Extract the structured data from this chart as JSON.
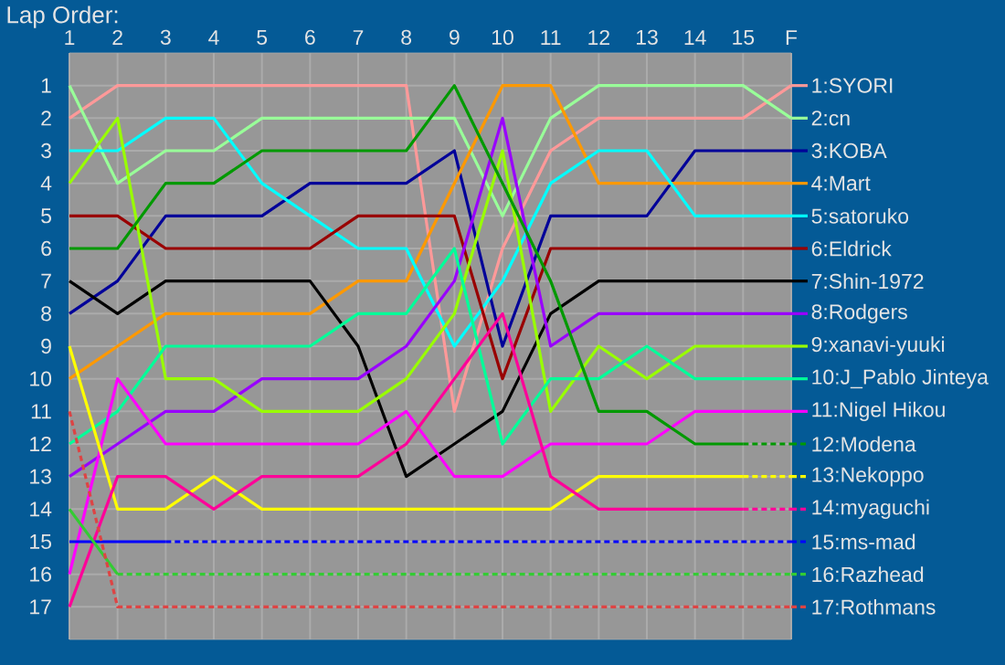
{
  "chart_data": {
    "type": "line",
    "title": "Lap Order:",
    "categories": [
      "1",
      "2",
      "3",
      "4",
      "5",
      "6",
      "7",
      "8",
      "9",
      "10",
      "11",
      "12",
      "13",
      "14",
      "15",
      "F"
    ],
    "ylim": [
      18,
      0
    ],
    "yticks": [
      1,
      2,
      3,
      4,
      5,
      6,
      7,
      8,
      9,
      10,
      11,
      12,
      13,
      14,
      15,
      16,
      17
    ],
    "grid": true,
    "legend": "right",
    "line_style": "solid",
    "series": [
      {
        "name": "1:SYORI",
        "color": "#ff9999",
        "values": [
          2,
          1,
          1,
          1,
          1,
          1,
          1,
          1,
          11,
          6,
          3,
          2,
          2,
          2,
          2,
          1
        ]
      },
      {
        "name": "2:cn",
        "color": "#99ff99",
        "values": [
          1,
          4,
          3,
          3,
          2,
          2,
          2,
          2,
          2,
          5,
          2,
          1,
          1,
          1,
          1,
          2
        ]
      },
      {
        "name": "3:KOBA",
        "color": "#000099",
        "values": [
          8,
          7,
          5,
          5,
          5,
          4,
          4,
          4,
          3,
          9,
          5,
          5,
          5,
          3,
          3,
          3
        ]
      },
      {
        "name": "4:Mart",
        "color": "#ff9900",
        "values": [
          10,
          9,
          8,
          8,
          8,
          8,
          7,
          7,
          4,
          1,
          1,
          4,
          4,
          4,
          4,
          4
        ]
      },
      {
        "name": "5:satoruko",
        "color": "#00ffff",
        "values": [
          3,
          3,
          2,
          2,
          4,
          5,
          6,
          6,
          9,
          7,
          4,
          3,
          3,
          5,
          5,
          5
        ]
      },
      {
        "name": "6:Eldrick",
        "color": "#990000",
        "values": [
          5,
          5,
          6,
          6,
          6,
          6,
          5,
          5,
          5,
          10,
          6,
          6,
          6,
          6,
          6,
          6
        ]
      },
      {
        "name": "7:Shin-1972",
        "color": "#000000",
        "values": [
          7,
          8,
          7,
          7,
          7,
          7,
          9,
          13,
          12,
          11,
          8,
          7,
          7,
          7,
          7,
          7
        ]
      },
      {
        "name": "8:Rodgers",
        "color": "#9900ff",
        "values": [
          13,
          12,
          11,
          11,
          10,
          10,
          10,
          9,
          7,
          2,
          9,
          8,
          8,
          8,
          8,
          8
        ]
      },
      {
        "name": "9:xanavi-yuuki",
        "color": "#99ff00",
        "values": [
          4,
          2,
          10,
          10,
          11,
          11,
          11,
          10,
          8,
          3,
          11,
          9,
          10,
          9,
          9,
          9
        ]
      },
      {
        "name": "10:J_Pablo Jinteya",
        "color": "#00ff99",
        "values": [
          12,
          11,
          9,
          9,
          9,
          9,
          8,
          8,
          6,
          12,
          10,
          10,
          9,
          10,
          10,
          10
        ]
      },
      {
        "name": "11:Nigel Hikou",
        "color": "#ff00ff",
        "values": [
          16,
          10,
          12,
          12,
          12,
          12,
          12,
          11,
          13,
          13,
          12,
          12,
          12,
          11,
          11,
          11
        ]
      },
      {
        "name": "12:Modena",
        "color": "#009900",
        "values": [
          6,
          6,
          4,
          4,
          3,
          3,
          3,
          3,
          1,
          4,
          7,
          11,
          11,
          12,
          12,
          null
        ]
      },
      {
        "color": "#009900",
        "line_style": "dashed",
        "values": [
          null,
          null,
          null,
          null,
          null,
          null,
          null,
          null,
          null,
          null,
          null,
          null,
          null,
          null,
          12,
          12
        ]
      },
      {
        "name": "13:Nekoppo",
        "color": "#ffff00",
        "values": [
          9,
          14,
          14,
          13,
          14,
          14,
          14,
          14,
          14,
          14,
          14,
          13,
          13,
          13,
          13,
          null
        ]
      },
      {
        "color": "#ffff00",
        "line_style": "dashed",
        "values": [
          null,
          null,
          null,
          null,
          null,
          null,
          null,
          null,
          null,
          null,
          null,
          null,
          null,
          null,
          13,
          13
        ]
      },
      {
        "name": "14:myaguchi",
        "color": "#ff0099",
        "values": [
          17,
          13,
          13,
          14,
          13,
          13,
          13,
          12,
          10,
          8,
          13,
          14,
          14,
          14,
          14,
          null
        ]
      },
      {
        "color": "#ff0099",
        "line_style": "dashed",
        "values": [
          null,
          null,
          null,
          null,
          null,
          null,
          null,
          null,
          null,
          null,
          null,
          null,
          null,
          null,
          14,
          14
        ]
      },
      {
        "name": "15:ms-mad",
        "color": "#0000ff",
        "values": [
          15,
          15,
          15,
          null,
          null,
          null,
          null,
          null,
          null,
          null,
          null,
          null,
          null,
          null,
          null,
          null
        ]
      },
      {
        "color": "#0000ff",
        "line_style": "dashed",
        "values": [
          null,
          null,
          15,
          15,
          15,
          15,
          15,
          15,
          15,
          15,
          15,
          15,
          15,
          15,
          15,
          15
        ]
      },
      {
        "name": "16:Razhead",
        "color": "#33cc33",
        "values": [
          14,
          16,
          null,
          null,
          null,
          null,
          null,
          null,
          null,
          null,
          null,
          null,
          null,
          null,
          null,
          null
        ]
      },
      {
        "color": "#33cc33",
        "line_style": "dashed",
        "values": [
          null,
          16,
          16,
          16,
          16,
          16,
          16,
          16,
          16,
          16,
          16,
          16,
          16,
          16,
          16,
          16
        ]
      },
      {
        "name": "17:Rothmans",
        "color": "#dd4444",
        "line_style": "dashed",
        "values": [
          11,
          17,
          17,
          17,
          17,
          17,
          17,
          17,
          17,
          17,
          17,
          17,
          17,
          17,
          17,
          17
        ]
      }
    ]
  }
}
